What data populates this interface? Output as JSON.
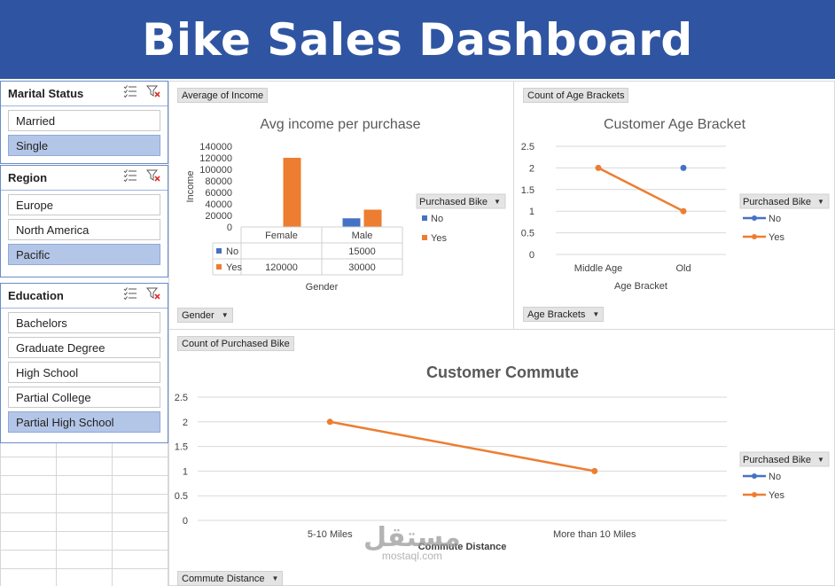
{
  "title": "Bike Sales Dashboard",
  "slicers": [
    {
      "title": "Marital Status",
      "items": [
        {
          "label": "Married",
          "selected": false
        },
        {
          "label": "Single",
          "selected": true
        }
      ]
    },
    {
      "title": "Region",
      "items": [
        {
          "label": "Europe",
          "selected": false
        },
        {
          "label": "North America",
          "selected": false
        },
        {
          "label": "Pacific",
          "selected": true
        }
      ]
    },
    {
      "title": "Education",
      "items": [
        {
          "label": "Bachelors",
          "selected": false
        },
        {
          "label": "Graduate Degree",
          "selected": false
        },
        {
          "label": "High School",
          "selected": false
        },
        {
          "label": "Partial College",
          "selected": false
        },
        {
          "label": "Partial High School",
          "selected": true
        }
      ]
    }
  ],
  "field_buttons": {
    "avg_income": "Average of Income",
    "gender": "Gender",
    "count_age": "Count of Age Brackets",
    "age_brackets": "Age Brackets",
    "count_purchased": "Count of Purchased Bike",
    "commute_distance": "Commute Distance"
  },
  "watermark": {
    "arabic": "مستقل",
    "latin": "mostaql.com"
  },
  "colors": {
    "banner": "#2f55a2",
    "no": "#4472c4",
    "yes": "#ed7d31",
    "selected": "#b4c6e7"
  },
  "chart_data": [
    {
      "type": "bar",
      "title": "Avg income per purchase",
      "xlabel": "Gender",
      "ylabel": "Income",
      "categories": [
        "Female",
        "Male"
      ],
      "series": [
        {
          "name": "No",
          "values": [
            null,
            15000
          ],
          "labels": [
            "",
            "15000"
          ]
        },
        {
          "name": "Yes",
          "values": [
            120000,
            30000
          ],
          "labels": [
            "120000",
            "30000"
          ]
        }
      ],
      "ylim": [
        0,
        140000
      ],
      "yticks": [
        "0",
        "20000",
        "40000",
        "60000",
        "80000",
        "100000",
        "120000",
        "140000"
      ],
      "legend_title": "Purchased Bike",
      "legend_position": "right",
      "data_table": true,
      "grid": false
    },
    {
      "type": "line",
      "title": "Customer Age Bracket",
      "xlabel": "Age Bracket",
      "ylabel": "",
      "categories": [
        "Middle Age",
        "Old"
      ],
      "series": [
        {
          "name": "No",
          "values": [
            null,
            2
          ]
        },
        {
          "name": "Yes",
          "values": [
            2,
            1
          ]
        }
      ],
      "ylim": [
        0,
        2.5
      ],
      "yticks": [
        "0",
        "0.5",
        "1",
        "1.5",
        "2",
        "2.5"
      ],
      "legend_title": "Purchased Bike",
      "legend_position": "right",
      "grid": true
    },
    {
      "type": "line",
      "title": "Customer Commute",
      "xlabel": "Commute Distance",
      "ylabel": "",
      "categories": [
        "5-10 Miles",
        "More than 10 Miles"
      ],
      "series": [
        {
          "name": "No",
          "values": [
            null,
            null
          ]
        },
        {
          "name": "Yes",
          "values": [
            2,
            1
          ]
        }
      ],
      "ylim": [
        0,
        2.5
      ],
      "yticks": [
        "0",
        "0.5",
        "1",
        "1.5",
        "2",
        "2.5"
      ],
      "legend_title": "Purchased Bike",
      "legend_position": "right",
      "grid": true
    }
  ]
}
